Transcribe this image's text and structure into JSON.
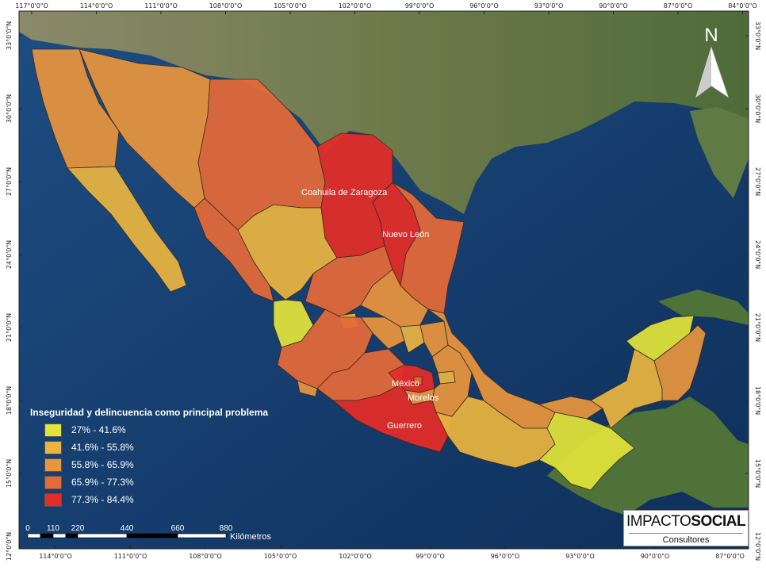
{
  "legend": {
    "title": "Inseguridad y delincuencia como principal problema",
    "classes": [
      {
        "label": "27% - 41.6%",
        "color": "#e1e43a"
      },
      {
        "label": "41.6% - 55.8%",
        "color": "#e9b540"
      },
      {
        "label": "55.8% - 65.9%",
        "color": "#e8953e"
      },
      {
        "label": "65.9% - 77.3%",
        "color": "#e56a38"
      },
      {
        "label": "77.3% - 84.4%",
        "color": "#e52c28"
      }
    ]
  },
  "state_labels": [
    "Coahuila de Zaragoza",
    "Nuevo León",
    "México",
    "Morelos",
    "Guerrero"
  ],
  "north_arrow": "N",
  "scale": {
    "ticks": [
      "0",
      "110",
      "220",
      "440",
      "660",
      "880"
    ],
    "unit": "Kilómetros"
  },
  "graticule": {
    "top": [
      "117°0'0\"O",
      "114°0'0\"O",
      "111°0'0\"O",
      "108°0'0\"O",
      "105°0'0\"O",
      "102°0'0\"O",
      "99°0'0\"O",
      "96°0'0\"O",
      "93°0'0\"O",
      "90°0'0\"O",
      "87°0'0\"O",
      "84°0'0\"O"
    ],
    "bottom": [
      "114°0'0\"O",
      "111°0'0\"O",
      "108°0'0\"O",
      "105°0'0\"O",
      "102°0'0\"O",
      "99°0'0\"O",
      "96°0'0\"O",
      "93°0'0\"O",
      "90°0'0\"O",
      "87°0'0\"O"
    ],
    "left": [
      "33°0'0\"N",
      "30°0'0\"N",
      "27°0'0\"N",
      "24°0'0\"N",
      "21°0'0\"N",
      "18°0'0\"N",
      "15°0'0\"N",
      "12°0'0\"N"
    ],
    "right": [
      "33°0'0\"N",
      "30°0'0\"N",
      "27°0'0\"N",
      "24°0'0\"N",
      "21°0'0\"N",
      "18°0'0\"N",
      "15°0'0\"N",
      "12°0'0\"N"
    ]
  },
  "brand": {
    "name_light": "IMPACTO",
    "name_bold": "SOCIAL",
    "tagline": "Consultores"
  },
  "colors": {
    "ocean": "#123a6b",
    "land": "#6f7d4e",
    "state_border": "#3a2a20"
  }
}
